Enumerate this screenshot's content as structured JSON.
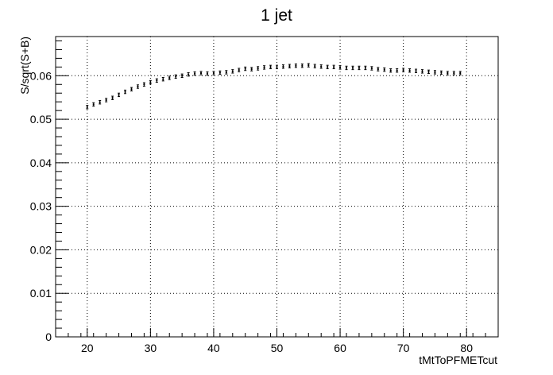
{
  "chart_data": {
    "type": "scatter",
    "title": "1 jet",
    "xlabel": "tMtToPFMETcut",
    "ylabel": "S/sqrt(S+B)",
    "xlim": [
      15,
      85
    ],
    "ylim": [
      0,
      0.069
    ],
    "grid": true,
    "legend": "none",
    "x_ticks": [
      "20",
      "30",
      "40",
      "50",
      "60",
      "70",
      "80"
    ],
    "y_ticks": [
      "0",
      "0.01",
      "0.02",
      "0.03",
      "0.04",
      "0.05",
      "0.06"
    ],
    "series": [
      {
        "x": [
          20,
          21,
          22,
          23,
          24,
          25,
          26,
          27,
          28,
          29,
          30,
          31,
          32,
          33,
          34,
          35,
          36,
          37,
          38,
          39,
          40,
          41,
          42,
          43,
          44,
          45,
          46,
          47,
          48,
          49,
          50,
          51,
          52,
          53,
          54,
          55,
          56,
          57,
          58,
          59,
          60,
          61,
          62,
          63,
          64,
          65,
          66,
          67,
          68,
          69,
          70,
          71,
          72,
          73,
          74,
          75,
          76,
          77,
          78,
          79
        ],
        "y": [
          0.0528,
          0.0534,
          0.0539,
          0.0544,
          0.0549,
          0.0556,
          0.0563,
          0.0569,
          0.0575,
          0.058,
          0.0585,
          0.0589,
          0.0592,
          0.0595,
          0.0598,
          0.06,
          0.0603,
          0.0605,
          0.0606,
          0.0605,
          0.0606,
          0.0607,
          0.0608,
          0.061,
          0.0613,
          0.0616,
          0.0615,
          0.0617,
          0.0619,
          0.062,
          0.062,
          0.0621,
          0.0622,
          0.0623,
          0.0623,
          0.0624,
          0.0622,
          0.0621,
          0.062,
          0.062,
          0.0619,
          0.0618,
          0.0618,
          0.0618,
          0.0618,
          0.0617,
          0.0615,
          0.0614,
          0.0612,
          0.0612,
          0.0613,
          0.0612,
          0.0611,
          0.061,
          0.0609,
          0.0608,
          0.0607,
          0.0606,
          0.0606,
          0.0606
        ],
        "err": 0.0004
      }
    ]
  }
}
